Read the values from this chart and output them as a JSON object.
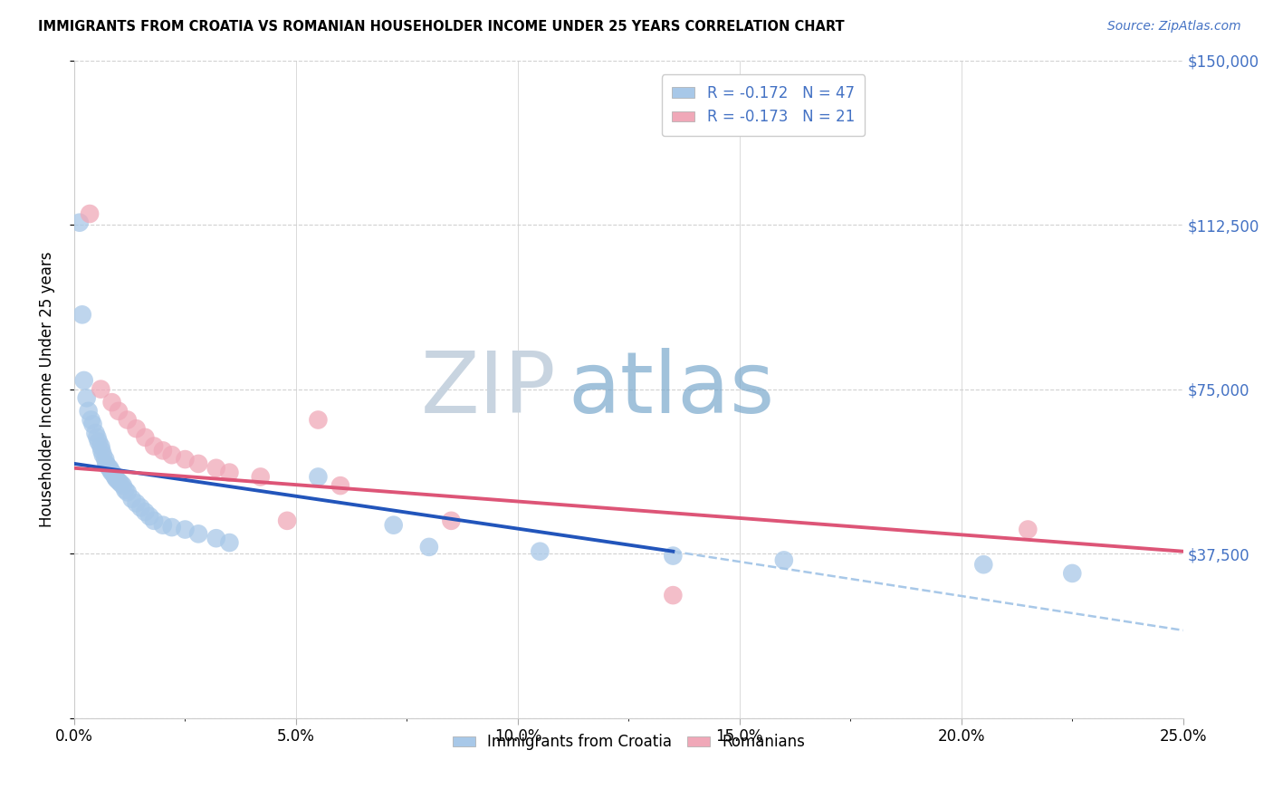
{
  "title": "IMMIGRANTS FROM CROATIA VS ROMANIAN HOUSEHOLDER INCOME UNDER 25 YEARS CORRELATION CHART",
  "source": "Source: ZipAtlas.com",
  "ylabel": "Householder Income Under 25 years",
  "xlabel_ticks": [
    "0.0%",
    "5.0%",
    "10.0%",
    "15.0%",
    "20.0%",
    "25.0%"
  ],
  "xlabel_vals": [
    0,
    5,
    10,
    15,
    20,
    25
  ],
  "ylabel_vals": [
    0,
    37500,
    75000,
    112500,
    150000
  ],
  "ylabel_labels": [
    "",
    "$37,500",
    "$75,000",
    "$112,500",
    "$150,000"
  ],
  "xlim": [
    0.0,
    25.0
  ],
  "ylim": [
    0,
    150000
  ],
  "croatia_r": "-0.172",
  "croatia_n": "47",
  "romanian_r": "-0.173",
  "romanian_n": "21",
  "croatia_color": "#a8c8e8",
  "romanian_color": "#f0a8b8",
  "croatia_line_color": "#2255bb",
  "romanian_line_color": "#dd5577",
  "right_axis_color": "#4472c4",
  "watermark_zip_color": "#c0cfe0",
  "watermark_atlas_color": "#88aacc",
  "legend_label_croatia": "Immigrants from Croatia",
  "legend_label_romanian": "Romanians",
  "croatia_x": [
    0.12,
    0.18,
    0.22,
    0.28,
    0.32,
    0.38,
    0.42,
    0.48,
    0.52,
    0.55,
    0.6,
    0.62,
    0.65,
    0.7,
    0.72,
    0.75,
    0.8,
    0.82,
    0.85,
    0.9,
    0.92,
    0.95,
    1.0,
    1.05,
    1.1,
    1.15,
    1.2,
    1.3,
    1.4,
    1.5,
    1.6,
    1.7,
    1.8,
    2.0,
    2.2,
    2.5,
    2.8,
    3.2,
    3.5,
    5.5,
    7.2,
    8.0,
    10.5,
    13.5,
    16.0,
    20.5,
    22.5
  ],
  "croatia_y": [
    113000,
    92000,
    77000,
    73000,
    70000,
    68000,
    67000,
    65000,
    64000,
    63000,
    62000,
    61000,
    60000,
    59000,
    58000,
    57500,
    57000,
    56500,
    56000,
    55500,
    55000,
    54500,
    54000,
    53500,
    53000,
    52000,
    51500,
    50000,
    49000,
    48000,
    47000,
    46000,
    45000,
    44000,
    43500,
    43000,
    42000,
    41000,
    40000,
    55000,
    44000,
    39000,
    38000,
    37000,
    36000,
    35000,
    33000
  ],
  "romanian_x": [
    0.35,
    0.6,
    0.85,
    1.0,
    1.2,
    1.4,
    1.6,
    1.8,
    2.0,
    2.2,
    2.5,
    2.8,
    3.2,
    3.5,
    4.2,
    5.5,
    6.0,
    8.5,
    13.5,
    21.5,
    4.8
  ],
  "romanian_y": [
    115000,
    75000,
    72000,
    70000,
    68000,
    66000,
    64000,
    62000,
    61000,
    60000,
    59000,
    58000,
    57000,
    56000,
    55000,
    68000,
    53000,
    45000,
    28000,
    43000,
    45000
  ],
  "croatia_line_x0": 0.0,
  "croatia_line_y0": 58000,
  "croatia_line_x1": 13.5,
  "croatia_line_y1": 38000,
  "croatia_dash_x0": 13.5,
  "croatia_dash_y0": 38000,
  "croatia_dash_x1": 25.0,
  "croatia_dash_y1": 20000,
  "romanian_line_x0": 0.0,
  "romanian_line_y0": 57000,
  "romanian_line_x1": 25.0,
  "romanian_line_y1": 38000
}
